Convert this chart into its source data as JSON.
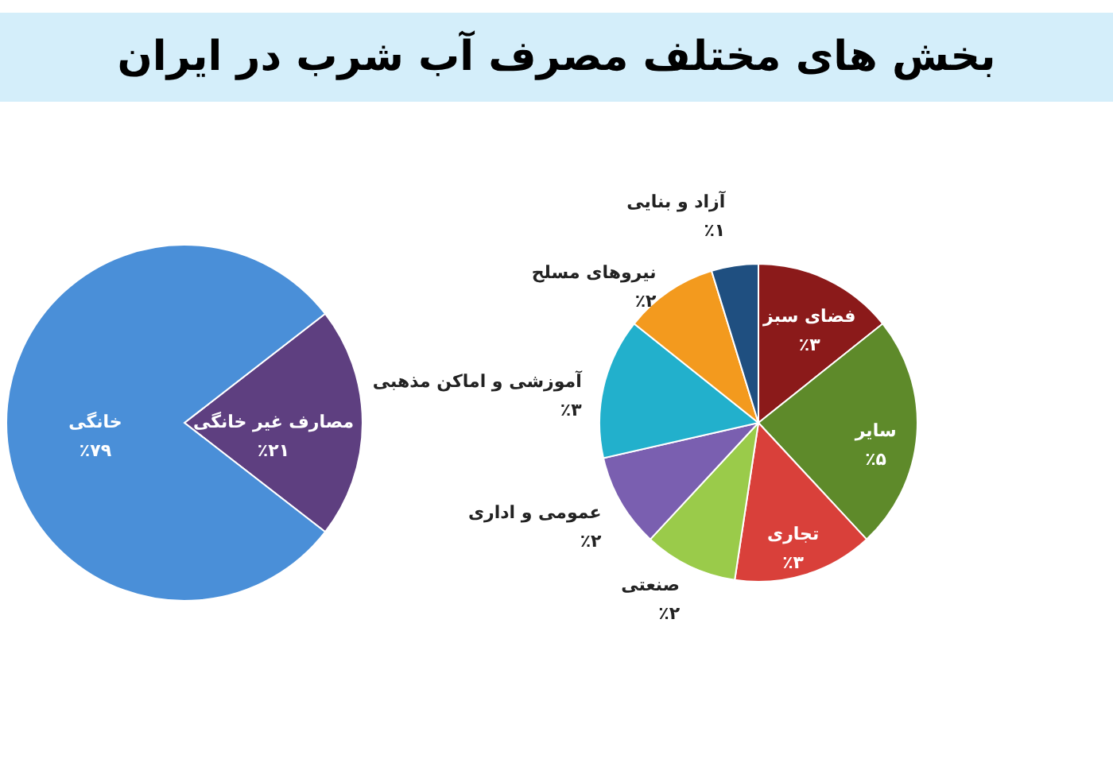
{
  "chart_data": [
    {
      "type": "pie",
      "title": "بخش های مختلف مصرف آب شرب در ایران",
      "categories": [
        "مصارف غیر خانگی",
        "خانگی"
      ],
      "values": [
        21,
        79
      ],
      "colors": [
        "#5e3f80",
        "#4a8fd8"
      ],
      "value_labels": [
        "٪۲۱",
        "٪۷۹"
      ]
    },
    {
      "type": "pie",
      "categories": [
        "فضای سبز",
        "سایر",
        "تجاری",
        "صنعتی",
        "عمومی و اداری",
        "آموزشی و اماکن مذهبی",
        "نیروهای مسلح",
        "آزاد و بنایی"
      ],
      "values": [
        3,
        5,
        3,
        2,
        2,
        3,
        2,
        1
      ],
      "colors": [
        "#8b1a1a",
        "#5e8a2a",
        "#d9403a",
        "#9acb4a",
        "#7a5fb0",
        "#22b0cc",
        "#f39a1e",
        "#1f4f80"
      ],
      "value_labels": [
        "٪۳",
        "٪۵",
        "٪۳",
        "٪۲",
        "٪۲",
        "٪۳",
        "٪۲",
        "٪۱"
      ]
    }
  ]
}
